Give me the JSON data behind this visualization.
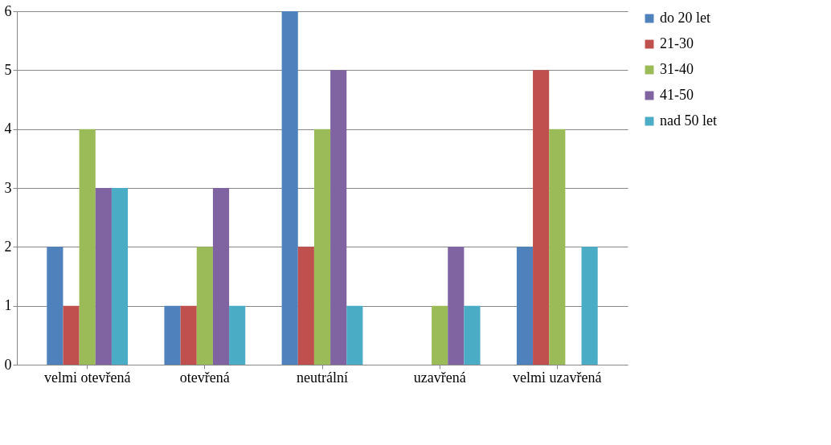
{
  "chart_data": {
    "type": "bar",
    "categories": [
      "velmi otevřená",
      "otevřená",
      "neutrální",
      "uzavřená",
      "velmi uzavřená"
    ],
    "series": [
      {
        "name": "do 20 let",
        "color": "#4f81bd",
        "values": [
          2,
          1,
          6,
          0,
          2
        ]
      },
      {
        "name": "21-30",
        "color": "#c0504d",
        "values": [
          1,
          1,
          2,
          0,
          5
        ]
      },
      {
        "name": "31-40",
        "color": "#9bbb59",
        "values": [
          4,
          2,
          4,
          1,
          4
        ]
      },
      {
        "name": "41-50",
        "color": "#8064a2",
        "values": [
          3,
          3,
          5,
          2,
          0
        ]
      },
      {
        "name": "nad 50 let",
        "color": "#4bacc6",
        "values": [
          3,
          1,
          1,
          1,
          2
        ]
      }
    ],
    "ylim": [
      0,
      6
    ],
    "yticks": [
      0,
      1,
      2,
      3,
      4,
      5,
      6
    ],
    "grid": "y",
    "legend": "right"
  }
}
